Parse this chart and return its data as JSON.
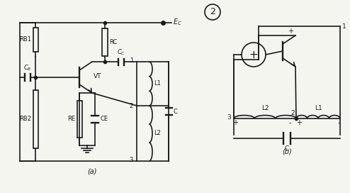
{
  "bg_color": "#f5f5f0",
  "line_color": "#1a1a1a",
  "lw": 1.2,
  "fig_width": 4.94,
  "fig_height": 2.72,
  "label_a": "(a)",
  "label_b": "(b)",
  "circle_num": "2",
  "EC_label": "E_C",
  "components": {
    "RB1": "RB1",
    "RB2": "RB2",
    "RC": "RC",
    "RE": "RE",
    "CB": "CB",
    "CC": "CC",
    "CE": "CE",
    "VT": "VT",
    "L1": "L1",
    "L2": "L2",
    "C": "C"
  }
}
